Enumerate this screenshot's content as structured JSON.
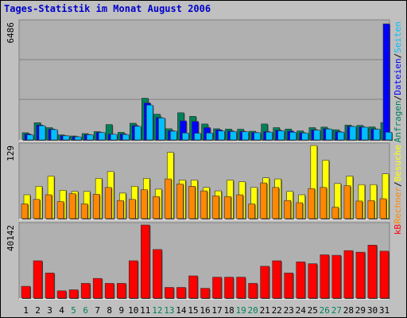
{
  "title": "Tages-Statistik im Monat August 2006",
  "colors": {
    "background": "#C0C0C0",
    "panel": "#B0B0B0",
    "title": "#0000CC",
    "anfragen": "#00805A",
    "dateien": "#0000FF",
    "seiten": "#00BFFF",
    "besuche": "#FFFF00",
    "rechner": "#FF8800",
    "kb": "#FF0000",
    "weekend_label": "#00805A"
  },
  "chart_data": [
    {
      "type": "bar",
      "title": "Tages-Statistik im Monat August 2006",
      "panel": "top",
      "ymax_label": "6486",
      "ylim": [
        0,
        6486
      ],
      "categories": [
        "1",
        "2",
        "3",
        "4",
        "5",
        "6",
        "7",
        "8",
        "9",
        "10",
        "11",
        "12",
        "13",
        "14",
        "15",
        "16",
        "17",
        "18",
        "19",
        "20",
        "21",
        "22",
        "23",
        "24",
        "25",
        "26",
        "27",
        "28",
        "29",
        "30",
        "31"
      ],
      "legend": [
        "Anfragen",
        "/",
        "Dateien",
        "/",
        "Seiten"
      ],
      "series": [
        {
          "name": "Anfragen",
          "color": "#00805A",
          "values": [
            400,
            950,
            680,
            280,
            220,
            350,
            460,
            850,
            420,
            920,
            2300,
            1420,
            620,
            1500,
            1300,
            880,
            620,
            600,
            590,
            480,
            880,
            680,
            600,
            500,
            680,
            710,
            560,
            820,
            800,
            720,
            960
          ]
        },
        {
          "name": "Dateien",
          "color": "#0000FF",
          "values": [
            330,
            820,
            600,
            240,
            190,
            300,
            420,
            320,
            330,
            790,
            2040,
            1240,
            510,
            1050,
            1020,
            680,
            550,
            490,
            470,
            410,
            460,
            530,
            480,
            400,
            560,
            620,
            460,
            760,
            720,
            610,
            6400
          ]
        },
        {
          "name": "Seiten",
          "color": "#00BFFF",
          "values": [
            280,
            780,
            570,
            230,
            170,
            280,
            410,
            310,
            300,
            750,
            1920,
            1210,
            480,
            380,
            370,
            380,
            490,
            460,
            450,
            400,
            430,
            500,
            420,
            380,
            540,
            600,
            430,
            740,
            700,
            590,
            420
          ]
        }
      ]
    },
    {
      "type": "bar",
      "panel": "middle",
      "ymax_label": "129",
      "ylim": [
        0,
        129
      ],
      "categories": [
        "1",
        "2",
        "3",
        "4",
        "5",
        "6",
        "7",
        "8",
        "9",
        "10",
        "11",
        "12",
        "13",
        "14",
        "15",
        "16",
        "17",
        "18",
        "19",
        "20",
        "21",
        "22",
        "23",
        "24",
        "25",
        "26",
        "27",
        "28",
        "29",
        "30",
        "31"
      ],
      "legend": [
        "Rechner",
        "/",
        "Besuche"
      ],
      "series": [
        {
          "name": "Besuche",
          "color": "#FFFF00",
          "values": [
            42,
            57,
            75,
            50,
            48,
            48,
            71,
            83,
            45,
            57,
            71,
            52,
            117,
            68,
            68,
            55,
            49,
            68,
            65,
            55,
            72,
            70,
            48,
            42,
            129,
            103,
            62,
            75,
            60,
            60,
            79
          ]
        },
        {
          "name": "Rechner",
          "color": "#FF8800",
          "values": [
            26,
            34,
            42,
            30,
            44,
            26,
            43,
            55,
            32,
            34,
            51,
            39,
            70,
            61,
            57,
            49,
            40,
            39,
            42,
            26,
            63,
            55,
            32,
            28,
            53,
            55,
            20,
            58,
            31,
            32,
            35
          ]
        }
      ]
    },
    {
      "type": "bar",
      "panel": "bottom",
      "ymax_label": "40142",
      "ylim": [
        0,
        40142
      ],
      "categories": [
        "1",
        "2",
        "3",
        "4",
        "5",
        "6",
        "7",
        "8",
        "9",
        "10",
        "11",
        "12",
        "13",
        "14",
        "15",
        "16",
        "17",
        "18",
        "19",
        "20",
        "21",
        "22",
        "23",
        "24",
        "25",
        "26",
        "27",
        "28",
        "29",
        "30",
        "31"
      ],
      "weekend_days": [
        "5",
        "6",
        "12",
        "13",
        "19",
        "20",
        "26",
        "27"
      ],
      "legend": [
        "kB"
      ],
      "series": [
        {
          "name": "kB",
          "color": "#FF0000",
          "values": [
            6500,
            20500,
            13800,
            4000,
            4600,
            8100,
            10800,
            8100,
            8100,
            20500,
            40142,
            26700,
            5900,
            5900,
            12200,
            5400,
            11500,
            11500,
            11500,
            8100,
            17500,
            20500,
            13800,
            19900,
            18900,
            23800,
            23500,
            26100,
            25200,
            29100,
            25800
          ]
        }
      ]
    }
  ]
}
